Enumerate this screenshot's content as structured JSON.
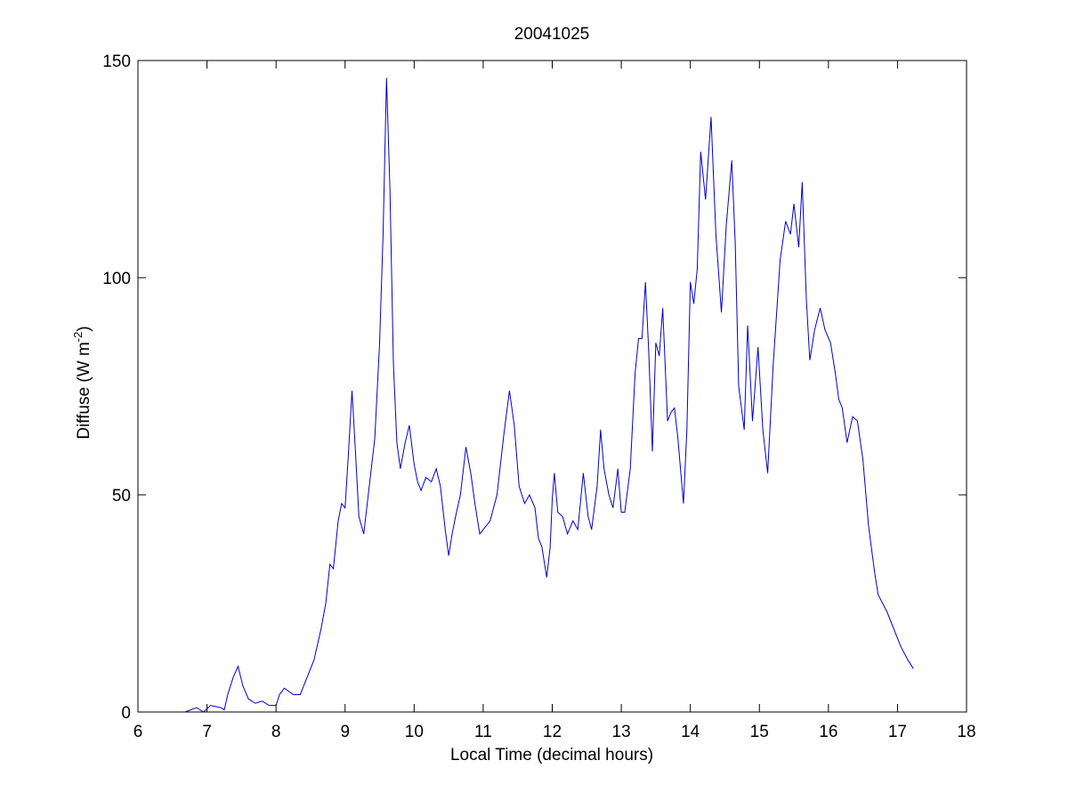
{
  "chart_data": {
    "type": "line",
    "title": "20041025",
    "xlabel": "Local Time (decimal hours)",
    "ylabel": [
      "Diffuse (W m",
      "-2",
      ")"
    ],
    "xlim": [
      6,
      18
    ],
    "xticks": [
      6,
      7,
      8,
      9,
      10,
      11,
      12,
      13,
      14,
      15,
      16,
      17,
      18
    ],
    "ylim": [
      0,
      150
    ],
    "yticks": [
      0,
      50,
      100,
      150
    ],
    "series": [
      {
        "color": "#0000cc",
        "x": [
          6.68,
          6.85,
          6.95,
          7.05,
          7.2,
          7.25,
          7.3,
          7.38,
          7.45,
          7.52,
          7.6,
          7.7,
          7.8,
          7.9,
          8.0,
          8.05,
          8.12,
          8.25,
          8.35,
          8.45,
          8.55,
          8.65,
          8.72,
          8.78,
          8.83,
          8.9,
          8.95,
          9.0,
          9.05,
          9.1,
          9.15,
          9.2,
          9.27,
          9.35,
          9.43,
          9.5,
          9.55,
          9.6,
          9.65,
          9.7,
          9.75,
          9.8,
          9.87,
          9.93,
          10.0,
          10.05,
          10.1,
          10.17,
          10.25,
          10.32,
          10.38,
          10.45,
          10.5,
          10.55,
          10.6,
          10.67,
          10.75,
          10.82,
          10.88,
          10.95,
          11.0,
          11.1,
          11.2,
          11.3,
          11.38,
          11.45,
          11.52,
          11.6,
          11.67,
          11.75,
          11.8,
          11.85,
          11.92,
          11.97,
          12.0,
          12.03,
          12.08,
          12.15,
          12.22,
          12.3,
          12.37,
          12.45,
          12.52,
          12.57,
          12.65,
          12.7,
          12.75,
          12.82,
          12.88,
          12.95,
          13.0,
          13.05,
          13.13,
          13.2,
          13.25,
          13.3,
          13.35,
          13.4,
          13.45,
          13.5,
          13.55,
          13.6,
          13.67,
          13.72,
          13.77,
          13.82,
          13.9,
          13.95,
          14.0,
          14.05,
          14.1,
          14.15,
          14.22,
          14.3,
          14.37,
          14.45,
          14.52,
          14.6,
          14.65,
          14.7,
          14.78,
          14.83,
          14.9,
          14.98,
          15.05,
          15.12,
          15.2,
          15.3,
          15.38,
          15.45,
          15.5,
          15.57,
          15.62,
          15.68,
          15.73,
          15.8,
          15.88,
          15.95,
          16.03,
          16.1,
          16.15,
          16.2,
          16.27,
          16.35,
          16.42,
          16.5,
          16.58,
          16.67,
          16.72,
          16.85,
          16.95,
          17.05,
          17.15,
          17.23
        ],
        "values": [
          0,
          1,
          0,
          1.5,
          1,
          0.5,
          4,
          8,
          10.5,
          6,
          3,
          2,
          2.5,
          1.5,
          1.5,
          4,
          5.5,
          4,
          4,
          8,
          12,
          19,
          25,
          34,
          33,
          44,
          48,
          47,
          60,
          74,
          60,
          45,
          41,
          52,
          63,
          85,
          110,
          146,
          120,
          80,
          62,
          56,
          62,
          66,
          57,
          53,
          51,
          54,
          53,
          56,
          52,
          42,
          36,
          41,
          45,
          50,
          61,
          55,
          48,
          41,
          42,
          44,
          50,
          64,
          74,
          66,
          52,
          48,
          50,
          47,
          40,
          38,
          31,
          38,
          49,
          55,
          46,
          45,
          41,
          44,
          42,
          55,
          45,
          42,
          52,
          65,
          56,
          50,
          47,
          56,
          46,
          46,
          56,
          78,
          86,
          86,
          99,
          82,
          60,
          85,
          82,
          93,
          67,
          69,
          70,
          63,
          48,
          65,
          99,
          94,
          102,
          129,
          118,
          137,
          110,
          92,
          112,
          127,
          108,
          75,
          65,
          89,
          67,
          84,
          65,
          55,
          80,
          104,
          113,
          110,
          117,
          107,
          122,
          95,
          81,
          88,
          93,
          88,
          85,
          78,
          72,
          70,
          62,
          68,
          67,
          58,
          43,
          32,
          27,
          23,
          19,
          15,
          12,
          10
        ]
      }
    ]
  }
}
